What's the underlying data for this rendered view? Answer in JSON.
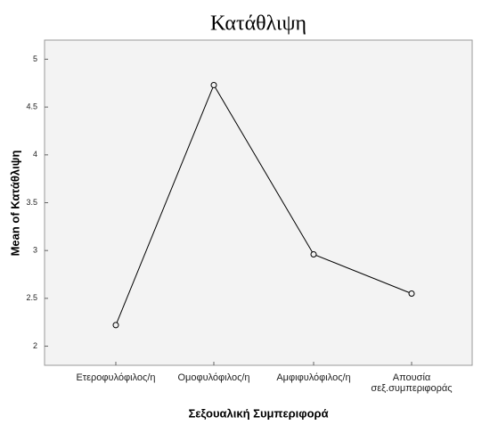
{
  "chart_data": {
    "type": "line",
    "title": "Κατάθλιψη",
    "x_label": "Σεξουαλική Συμπεριφορά",
    "y_label": "Mean of Κατάθλιψη",
    "categories": [
      "Ετεροφυλόφιλος/η",
      "Ομοφυλόφιλος/η",
      "Αμφιφυλόφιλος/η",
      "Απουσία σεξ.συμπεριφοράς"
    ],
    "values": [
      2.22,
      4.73,
      2.96,
      2.55
    ],
    "color": "#000000",
    "ylim": [
      1.8,
      5.2
    ],
    "yticks": [
      2,
      2.5,
      3,
      3.5,
      4,
      4.5,
      5
    ],
    "grid": false
  }
}
